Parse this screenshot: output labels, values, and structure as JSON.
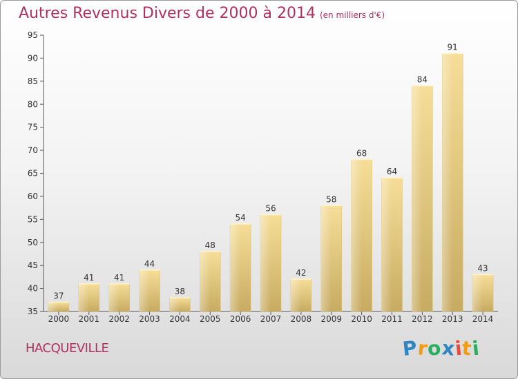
{
  "title": {
    "main": "Autres Revenus Divers de 2000 à 2014",
    "sub": "(en milliers d'€)"
  },
  "commune": "HACQUEVILLE",
  "logo": {
    "text": "Proxiti",
    "letters": [
      {
        "ch": "P",
        "color": "#2e86c1"
      },
      {
        "ch": "r",
        "color": "#f39c12"
      },
      {
        "ch": "o",
        "color": "#27ae60"
      },
      {
        "ch": "x",
        "color": "#2e86c1"
      },
      {
        "ch": "i",
        "color": "#e74c3c"
      },
      {
        "ch": "t",
        "color": "#f39c12"
      },
      {
        "ch": "i",
        "color": "#27ae60"
      }
    ]
  },
  "chart_data": {
    "type": "bar",
    "title": "Autres Revenus Divers de 2000 à 2014",
    "xlabel": "",
    "ylabel": "",
    "categories": [
      "2000",
      "2001",
      "2002",
      "2003",
      "2004",
      "2005",
      "2006",
      "2007",
      "2008",
      "2009",
      "2010",
      "2011",
      "2012",
      "2013",
      "2014"
    ],
    "values": [
      37,
      41,
      41,
      44,
      38,
      48,
      54,
      56,
      42,
      58,
      68,
      64,
      84,
      91,
      43
    ],
    "ylim": [
      35,
      95
    ],
    "yticks": [
      35,
      40,
      45,
      50,
      55,
      60,
      65,
      70,
      75,
      80,
      85,
      90,
      95
    ],
    "grid": false,
    "bar_color": "#e8cc82",
    "title_color": "#b03060"
  }
}
